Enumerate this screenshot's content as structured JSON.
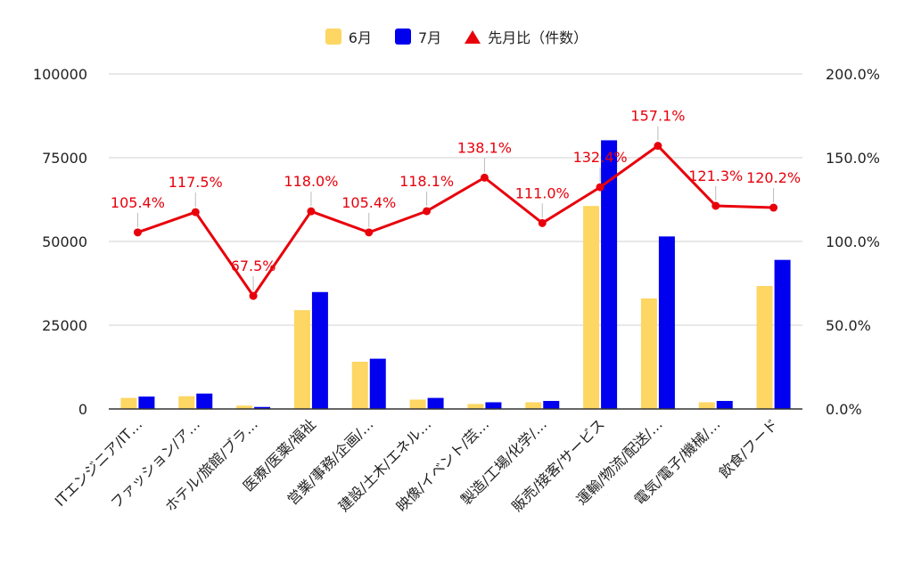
{
  "chart_data": {
    "type": "bar",
    "categories": [
      "ITエンジニア/IT…",
      "ファッション/ア…",
      "ホテル/旅館/ブラ…",
      "医療/医薬/福祉",
      "営業/事務/企画/…",
      "建設/土木/エネル…",
      "映像/イベント/芸…",
      "製造/工場/化学/…",
      "販売/接客/サービス",
      "運輸/物流/配送/…",
      "電気/電子/機械/…",
      "飲食/フード"
    ],
    "series": [
      {
        "name": "6月",
        "type": "bar",
        "axis": "left",
        "color": "#fdd663",
        "values": [
          3300,
          3800,
          1000,
          29500,
          14100,
          2800,
          1500,
          2000,
          60600,
          33000,
          2000,
          36700
        ]
      },
      {
        "name": "7月",
        "type": "bar",
        "axis": "left",
        "color": "#0000ee",
        "values": [
          3700,
          4600,
          600,
          34900,
          15000,
          3300,
          2000,
          2400,
          80200,
          51500,
          2400,
          44500
        ]
      },
      {
        "name": "先月比（件数）",
        "type": "line",
        "axis": "right",
        "color": "#e8000b",
        "values": [
          105.4,
          117.5,
          67.5,
          118.0,
          105.4,
          118.1,
          138.1,
          111.0,
          132.4,
          157.1,
          121.3,
          120.2
        ],
        "labels": [
          "105.4%",
          "117.5%",
          "67.5%",
          "118.0%",
          "105.4%",
          "118.1%",
          "138.1%",
          "111.0%",
          "132.4%",
          "157.1%",
          "121.3%",
          "120.2%"
        ]
      }
    ],
    "y_left": {
      "range": [
        0,
        100000
      ],
      "ticks": [
        0,
        25000,
        50000,
        75000,
        100000
      ],
      "tick_labels": [
        "0",
        "25000",
        "50000",
        "75000",
        "100000"
      ]
    },
    "y_right": {
      "range": [
        0,
        200
      ],
      "ticks": [
        0,
        50,
        100,
        150,
        200
      ],
      "tick_labels": [
        "0.0%",
        "50.0%",
        "100.0%",
        "150.0%",
        "200.0%"
      ]
    },
    "grid": true,
    "legend_position": "top-center"
  }
}
